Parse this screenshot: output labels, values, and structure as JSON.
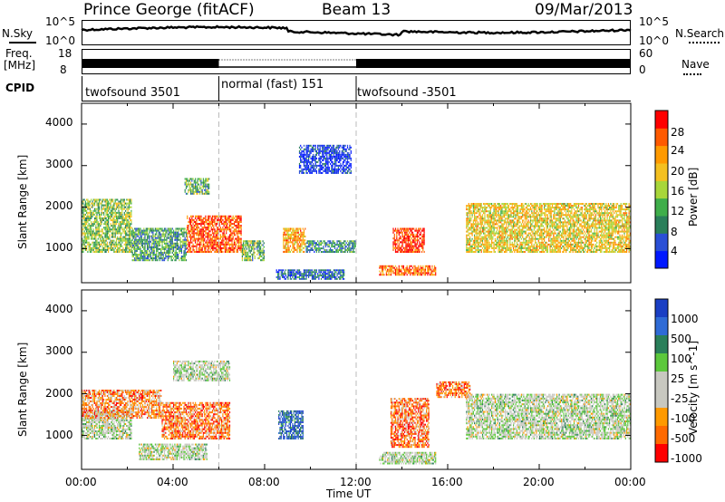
{
  "header": {
    "site": "Prince George (fitACF)",
    "beam": "Beam 13",
    "date": "09/Mar/2013"
  },
  "sky_panel": {
    "left_label": "N.Sky",
    "right_label": "N.Search",
    "left_ticks": [
      "10^5",
      "10^0"
    ],
    "right_ticks": [
      "10^5",
      "10^0"
    ]
  },
  "freq_panel": {
    "left_label_1": "Freq.",
    "left_label_2": "[MHz]",
    "right_label": "Nave",
    "left_ticks": [
      "18",
      "8"
    ],
    "right_ticks": [
      "60",
      "0"
    ]
  },
  "cpid": {
    "label": "CPID",
    "segments": [
      {
        "name": "twofsound 3501",
        "start_hour": 0,
        "end_hour": 6
      },
      {
        "name": "normal (fast) 151",
        "start_hour": 6,
        "end_hour": 12
      },
      {
        "name": "twofsound -3501",
        "start_hour": 12,
        "end_hour": 24
      }
    ]
  },
  "chart_data": [
    {
      "type": "heatmap",
      "title": "",
      "xlabel": "Time UT",
      "ylabel": "Slant Range [km]",
      "x_ticks": [
        "00:00",
        "04:00",
        "08:00",
        "12:00",
        "16:00",
        "20:00",
        "00:00"
      ],
      "y_ticks": [
        "1000",
        "2000",
        "3000",
        "4000"
      ],
      "xlim_hours": [
        0,
        24
      ],
      "ylim_km": [
        180,
        4500
      ],
      "colorbar": {
        "label": "Power [dB]",
        "ticks": [
          "4",
          "8",
          "12",
          "16",
          "20",
          "24",
          "28"
        ],
        "colors": [
          "#0018ff",
          "#2a4fd6",
          "#2a7f5a",
          "#3fae4a",
          "#a8d63a",
          "#f4c020",
          "#ff9a00",
          "#ff5a00",
          "#ff0000"
        ]
      },
      "regions": [
        {
          "t0": 0.0,
          "t1": 2.2,
          "r0": 900,
          "r1": 2200,
          "level": 0.45
        },
        {
          "t0": 2.2,
          "t1": 4.6,
          "r0": 700,
          "r1": 1500,
          "level": 0.35
        },
        {
          "t0": 4.6,
          "t1": 7.0,
          "r0": 900,
          "r1": 1800,
          "level": 0.85
        },
        {
          "t0": 7.0,
          "t1": 8.0,
          "r0": 700,
          "r1": 1200,
          "level": 0.4
        },
        {
          "t0": 8.8,
          "t1": 9.8,
          "r0": 900,
          "r1": 1500,
          "level": 0.7
        },
        {
          "t0": 9.8,
          "t1": 12.0,
          "r0": 900,
          "r1": 1200,
          "level": 0.3
        },
        {
          "t0": 8.5,
          "t1": 11.5,
          "r0": 250,
          "r1": 500,
          "level": 0.2
        },
        {
          "t0": 13.6,
          "t1": 15.0,
          "r0": 900,
          "r1": 1500,
          "level": 0.9
        },
        {
          "t0": 13.0,
          "t1": 15.5,
          "r0": 350,
          "r1": 600,
          "level": 0.8
        },
        {
          "t0": 16.8,
          "t1": 24.0,
          "r0": 900,
          "r1": 2100,
          "level": 0.6
        },
        {
          "t0": 4.5,
          "t1": 5.6,
          "r0": 2300,
          "r1": 2700,
          "level": 0.4
        },
        {
          "t0": 9.5,
          "t1": 11.8,
          "r0": 2800,
          "r1": 3500,
          "level": 0.1
        }
      ]
    },
    {
      "type": "heatmap",
      "title": "",
      "xlabel": "Time UT",
      "ylabel": "Slant Range [km]",
      "x_ticks": [
        "00:00",
        "04:00",
        "08:00",
        "12:00",
        "16:00",
        "20:00",
        "00:00"
      ],
      "y_ticks": [
        "1000",
        "2000",
        "3000",
        "4000"
      ],
      "xlim_hours": [
        0,
        24
      ],
      "ylim_km": [
        180,
        4500
      ],
      "colorbar": {
        "label": "Velocity [m s^-1]",
        "ticks": [
          "1000",
          "500",
          "100",
          "25",
          "-25",
          "-100",
          "-500",
          "-1000"
        ],
        "colors": [
          "#1a3fc4",
          "#2f6bd6",
          "#2a7f5a",
          "#5cc83c",
          "#c8c8c0",
          "#c8c8c0",
          "#ff9a00",
          "#ff6a00",
          "#ff0000"
        ]
      },
      "regions": [
        {
          "t0": 0.0,
          "t1": 2.2,
          "r0": 900,
          "r1": 1600,
          "level": 0.5
        },
        {
          "t0": 0.0,
          "t1": 3.5,
          "r0": 1400,
          "r1": 2100,
          "level": 0.75
        },
        {
          "t0": 3.5,
          "t1": 6.5,
          "r0": 900,
          "r1": 1800,
          "level": 0.8
        },
        {
          "t0": 8.6,
          "t1": 9.7,
          "r0": 900,
          "r1": 1600,
          "level": 0.15
        },
        {
          "t0": 13.5,
          "t1": 15.2,
          "r0": 700,
          "r1": 1900,
          "level": 0.8
        },
        {
          "t0": 13.0,
          "t1": 15.5,
          "r0": 300,
          "r1": 600,
          "level": 0.5
        },
        {
          "t0": 15.5,
          "t1": 17.0,
          "r0": 1900,
          "r1": 2300,
          "level": 0.8
        },
        {
          "t0": 16.8,
          "t1": 24.0,
          "r0": 900,
          "r1": 2000,
          "level": 0.5
        },
        {
          "t0": 4.0,
          "t1": 6.5,
          "r0": 2300,
          "r1": 2800,
          "level": 0.5
        },
        {
          "t0": 2.5,
          "t1": 5.5,
          "r0": 400,
          "r1": 800,
          "level": 0.5
        }
      ]
    }
  ]
}
